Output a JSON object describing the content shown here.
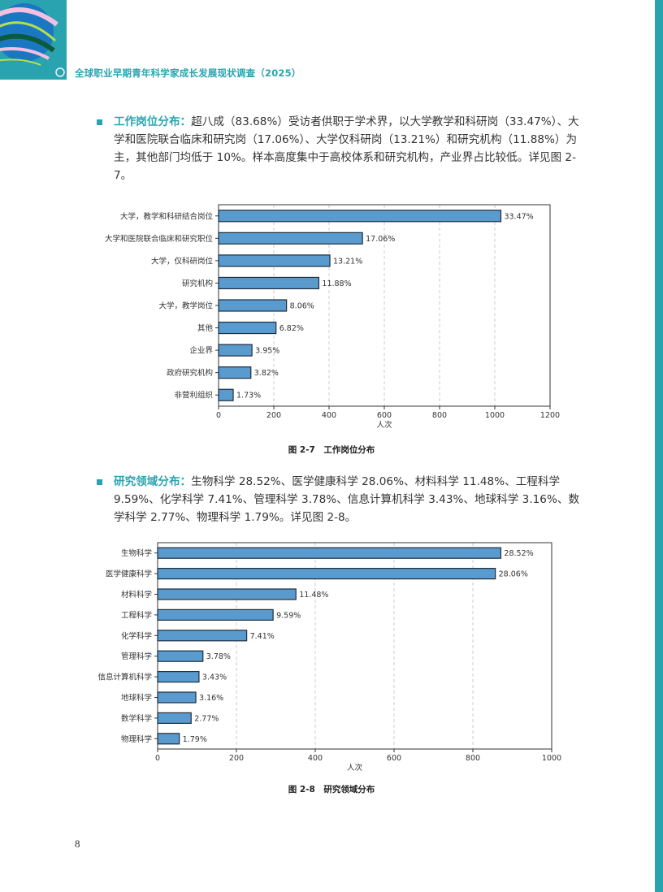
{
  "header": {
    "title": "全球职业早期青年科学家成长发展现状调查（2025）",
    "logo": "globe-ribbon-logo"
  },
  "section1": {
    "lead": "工作岗位分布：",
    "text": "超八成（83.68%）受访者供职于学术界，以大学教学和科研岗（33.47%）、大学和医院联合临床和研究岗（17.06%）、大学仅科研岗（13.21%）和研究机构（11.88%）为主，其他部门均低于 10%。样本高度集中于高校体系和研究机构，产业界占比较低。详见图 2-7。"
  },
  "section2": {
    "lead": "研究领域分布：",
    "text": "生物科学 28.52%、医学健康科学 28.06%、材料科学 11.48%、工程科学 9.59%、化学科学 7.41%、管理科学 3.78%、信息计算机科学 3.43%、地球科学 3.16%、数学科学 2.77%、物理科学 1.79%。详见图 2-8。"
  },
  "page_number": "8",
  "colors": {
    "accent": "#2aa3b1",
    "bar": "#5a9bcf",
    "bar_border": "#1f2d3d"
  },
  "chart_data": [
    {
      "type": "bar",
      "orientation": "horizontal",
      "caption": "图 2-7　工作岗位分布",
      "xlabel": "人次",
      "xlim": [
        0,
        1200
      ],
      "xticks": [
        0,
        200,
        400,
        600,
        800,
        1000,
        1200
      ],
      "grid": "vertical-dashed",
      "categories": [
        "大学，教学和科研结合岗位",
        "大学和医院联合临床和研究职位",
        "大学，仅科研岗位",
        "研究机构",
        "大学，教学岗位",
        "其他",
        "企业界",
        "政府研究机构",
        "非营利组织"
      ],
      "values": [
        1022,
        521,
        403,
        363,
        246,
        208,
        121,
        117,
        53
      ],
      "labels": [
        "33.47%",
        "17.06%",
        "13.21%",
        "11.88%",
        "8.06%",
        "6.82%",
        "3.95%",
        "3.82%",
        "1.73%"
      ]
    },
    {
      "type": "bar",
      "orientation": "horizontal",
      "caption": "图 2-8　研究领域分布",
      "xlabel": "人次",
      "xlim": [
        0,
        1000
      ],
      "xticks": [
        0,
        200,
        400,
        600,
        800,
        1000
      ],
      "grid": "vertical-dashed",
      "categories": [
        "生物科学",
        "医学健康科学",
        "材料科学",
        "工程科学",
        "化学科学",
        "管理科学",
        "信息计算机科学",
        "地球科学",
        "数学科学",
        "物理科学"
      ],
      "values": [
        871,
        857,
        351,
        293,
        226,
        115,
        105,
        97,
        85,
        55
      ],
      "labels": [
        "28.52%",
        "28.06%",
        "11.48%",
        "9.59%",
        "7.41%",
        "3.78%",
        "3.43%",
        "3.16%",
        "2.77%",
        "1.79%"
      ]
    }
  ]
}
